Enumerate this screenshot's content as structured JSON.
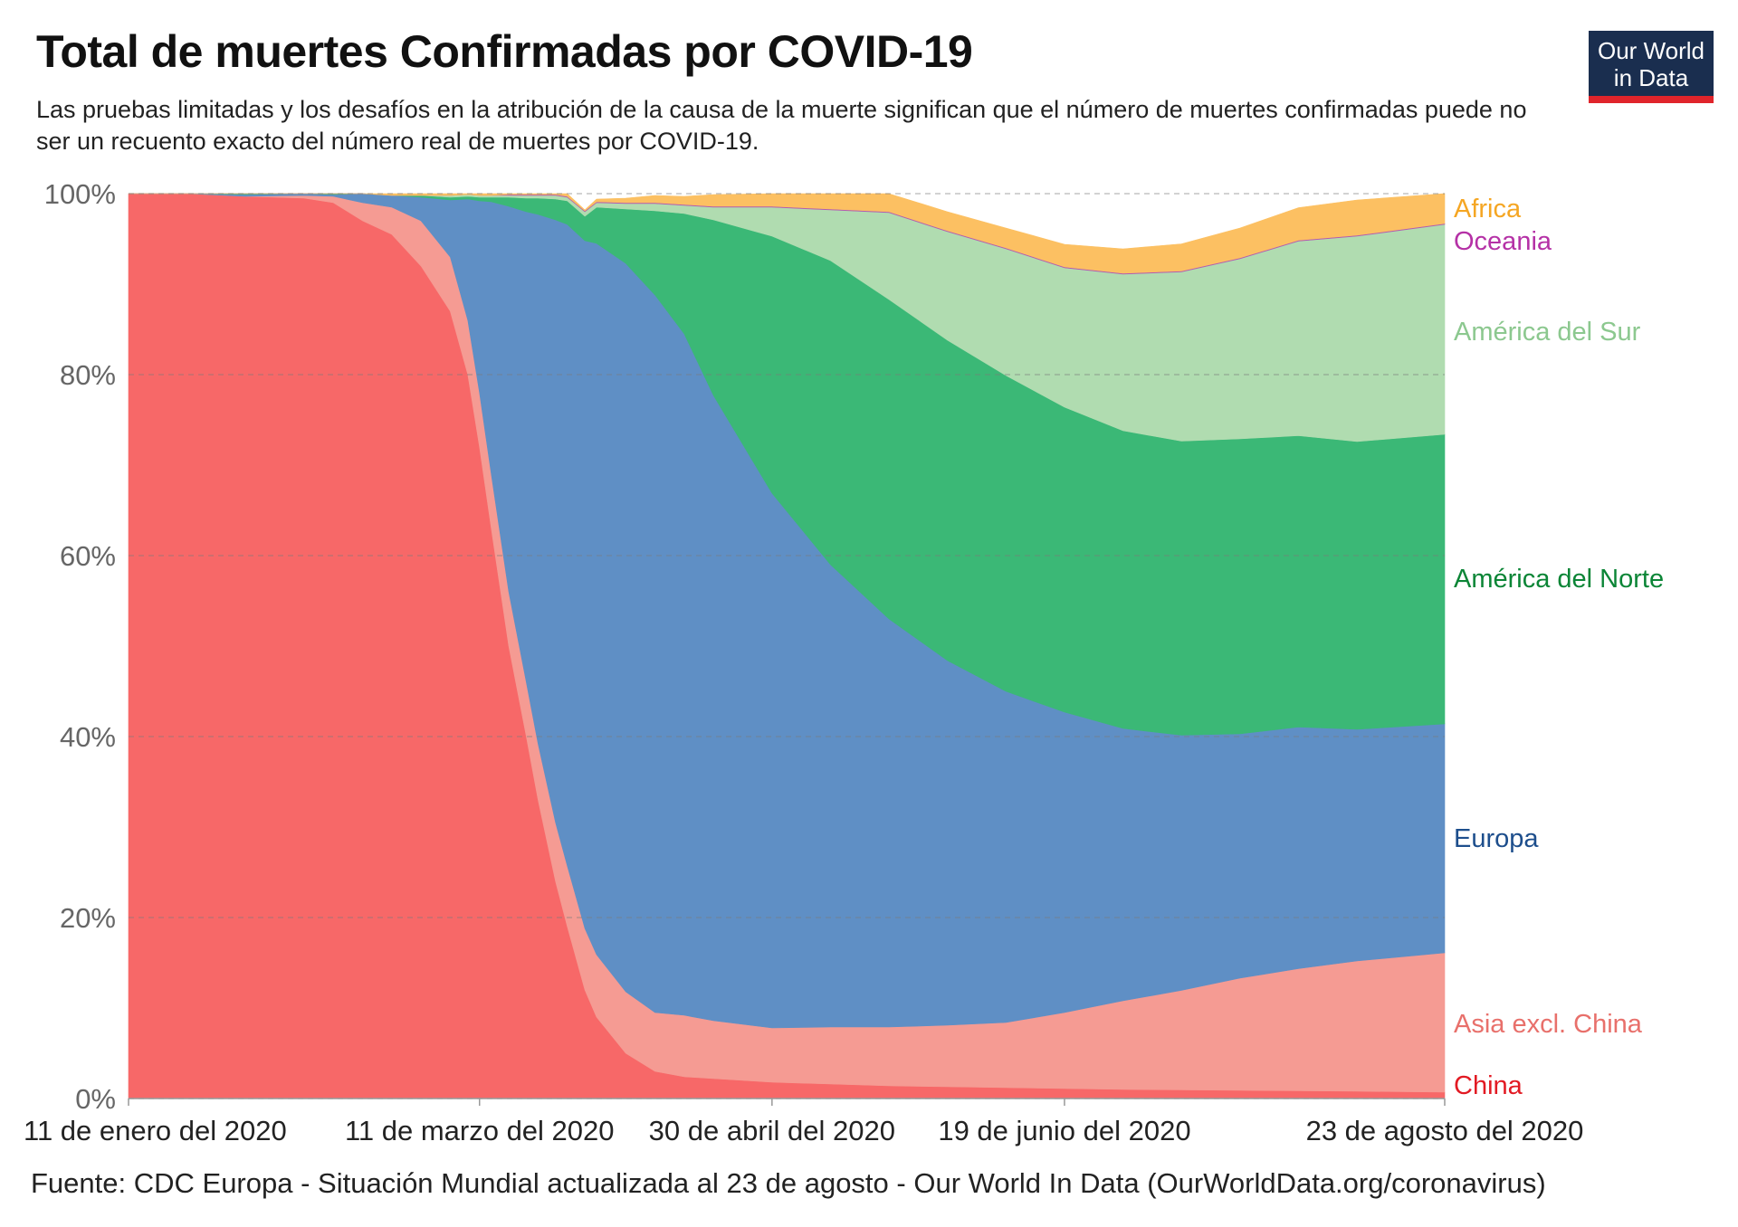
{
  "header": {
    "title": "Total de muertes Confirmadas por COVID-19",
    "subtitle": "Las pruebas limitadas y los desafíos en la atribución de la causa de la muerte significan que el número de muertes confirmadas puede no ser un recuento exacto del número real de muertes por COVID-19."
  },
  "logo": {
    "line1": "Our World",
    "line2": "in Data",
    "bg_color": "#1a2e4f",
    "accent_color": "#e0242b"
  },
  "source": "Fuente: CDC Europa - Situación Mundial actualizada al 23 de agosto - Our World In Data (OurWorldData.org/coronavirus)",
  "chart_data": {
    "type": "area",
    "stacked": true,
    "normalized": true,
    "title": "Total de muertes Confirmadas por COVID-19",
    "xlabel": "",
    "ylabel": "",
    "x_domain_days": [
      0,
      225
    ],
    "ylim": [
      0,
      100
    ],
    "y_ticks": [
      0,
      20,
      40,
      60,
      80,
      100
    ],
    "y_tick_labels": [
      "0%",
      "20%",
      "40%",
      "60%",
      "80%",
      "100%"
    ],
    "grid": true,
    "x_ticks": [
      {
        "day": 0,
        "label": "11 de enero del 2020"
      },
      {
        "day": 60,
        "label": "11 de marzo del 2020"
      },
      {
        "day": 110,
        "label": "30 de abril del 2020"
      },
      {
        "day": 160,
        "label": "19 de junio del 2020"
      },
      {
        "day": 225,
        "label": "23 de agosto del 2020"
      }
    ],
    "x_days": [
      0,
      10,
      20,
      30,
      35,
      40,
      45,
      50,
      55,
      58,
      60,
      62,
      65,
      68,
      70,
      73,
      75,
      78,
      80,
      85,
      90,
      95,
      100,
      110,
      120,
      130,
      140,
      150,
      160,
      170,
      180,
      190,
      200,
      210,
      225
    ],
    "series": [
      {
        "name": "China",
        "color": "#f76868",
        "values": [
          100,
          100,
          99.7,
          99.5,
          99,
          97,
          95.5,
          92,
          87,
          80,
          72,
          63,
          50,
          40,
          33,
          24,
          19,
          12,
          9,
          5,
          3,
          2.4,
          2.2,
          1.8,
          1.6,
          1.4,
          1.3,
          1.2,
          1.1,
          1.0,
          0.95,
          0.9,
          0.85,
          0.8,
          0.7
        ]
      },
      {
        "name": "Asia excl. China",
        "color": "#f59b93",
        "values": [
          0,
          0,
          0,
          0.3,
          0.7,
          2.0,
          3.0,
          5.0,
          6.0,
          6.0,
          6.0,
          6.0,
          6.0,
          6.0,
          6.2,
          6.5,
          6.7,
          6.8,
          6.9,
          6.8,
          6.5,
          6.8,
          6.4,
          6.0,
          6.3,
          6.5,
          6.8,
          7.2,
          8.4,
          9.8,
          11.0,
          12.4,
          13.5,
          14.4,
          15.4
        ]
      },
      {
        "name": "Europa",
        "color": "#5f8fc5",
        "values": [
          0,
          0,
          0.2,
          0.2,
          0.2,
          1.0,
          1.3,
          2.6,
          6.3,
          13.4,
          21.2,
          30.1,
          42.6,
          52.0,
          58.5,
          66.6,
          70.9,
          76.0,
          78.6,
          80.5,
          79.3,
          75.3,
          69.1,
          59.1,
          51.1,
          45.1,
          40.3,
          36.6,
          33.2,
          30.1,
          28.2,
          27.0,
          26.7,
          25.6,
          25.3
        ]
      },
      {
        "name": "América del Norte",
        "color": "#3bb876",
        "values": [
          0,
          0,
          0.1,
          0,
          0.1,
          0,
          0,
          0.2,
          0.3,
          0.3,
          0.4,
          0.5,
          1.0,
          1.5,
          1.8,
          2.3,
          2.6,
          2.7,
          4.0,
          6.0,
          9.3,
          13.3,
          19.4,
          28.4,
          33.6,
          35.3,
          35.4,
          34.9,
          33.7,
          32.9,
          32.5,
          32.6,
          32.2,
          31.8,
          32.0
        ]
      },
      {
        "name": "América del Sur",
        "color": "#b0dcb0",
        "values": [
          0,
          0,
          0,
          0,
          0,
          0,
          0,
          0,
          0.2,
          0.2,
          0.2,
          0.2,
          0.2,
          0.3,
          0.3,
          0.4,
          0.4,
          0.5,
          0.5,
          0.6,
          0.8,
          0.9,
          1.4,
          3.2,
          5.6,
          9.6,
          12.0,
          14.0,
          15.4,
          17.3,
          18.7,
          19.9,
          21.5,
          22.7,
          23.2
        ]
      },
      {
        "name": "Oceania",
        "color": "#b35bb0",
        "values": [
          0,
          0,
          0,
          0,
          0,
          0,
          0,
          0,
          0,
          0,
          0,
          0,
          0.1,
          0.1,
          0.1,
          0.1,
          0.1,
          0.1,
          0.1,
          0.1,
          0.1,
          0.1,
          0.1,
          0.1,
          0.1,
          0.1,
          0.1,
          0.1,
          0.1,
          0.1,
          0.1,
          0.1,
          0.1,
          0.1,
          0.1
        ]
      },
      {
        "name": "Africa",
        "color": "#fcc062",
        "values": [
          0,
          0,
          0,
          0,
          0,
          0,
          0.2,
          0.2,
          0.2,
          0.2,
          0.2,
          0.2,
          0.1,
          0.1,
          0.1,
          0.1,
          0.3,
          0.1,
          0.3,
          0.5,
          0.8,
          0.9,
          1.3,
          1.4,
          1.7,
          2.0,
          2.1,
          2.2,
          2.5,
          2.7,
          3.0,
          3.3,
          3.6,
          3.9,
          4.1
        ]
      }
    ],
    "legend_placement": "right-end",
    "legend": [
      {
        "name": "Africa",
        "color": "#f5a623",
        "anchor_pct": 98.4
      },
      {
        "name": "Oceania",
        "color": "#b531a6",
        "anchor_pct": 94.8
      },
      {
        "name": "América del Sur",
        "color": "#8cc88f",
        "anchor_pct": 84.8
      },
      {
        "name": "América del Norte",
        "color": "#0b8536",
        "anchor_pct": 57.5
      },
      {
        "name": "Europa",
        "color": "#1d4e8c",
        "anchor_pct": 28.8
      },
      {
        "name": "Asia excl. China",
        "color": "#e8706b",
        "anchor_pct": 8.3
      },
      {
        "name": "China",
        "color": "#e21a23",
        "anchor_pct": 1.5
      }
    ]
  }
}
